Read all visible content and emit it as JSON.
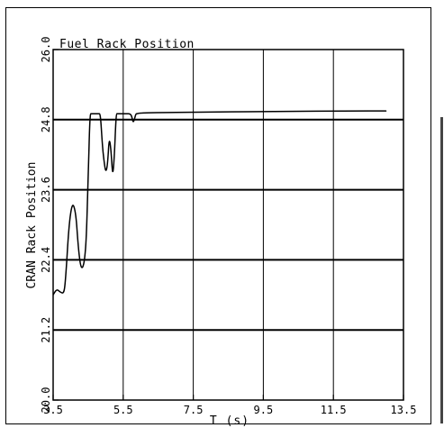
{
  "chart_data": {
    "type": "line",
    "title": "Fuel Rack Position",
    "xlabel": "T (s)",
    "ylabel": "CRAN Rack Position",
    "xlim": [
      3.5,
      13.5
    ],
    "ylim": [
      20.0,
      26.0
    ],
    "x_ticks": [
      "3.5",
      "5.5",
      "7.5",
      "9.5",
      "11.5",
      "13.5"
    ],
    "y_ticks": [
      "20.0",
      "21.2",
      "22.4",
      "23.6",
      "24.8",
      "26.0"
    ],
    "grid": true,
    "series": [
      {
        "x": [
          3.5,
          3.6,
          3.7,
          3.8,
          3.85,
          3.95,
          4.05,
          4.15,
          4.22,
          4.28,
          4.34,
          4.4,
          4.45,
          4.5,
          4.55,
          4.6,
          4.65,
          4.7,
          4.75,
          4.8,
          4.85,
          4.9,
          4.95,
          5.0,
          5.05,
          5.1,
          5.15,
          5.2,
          5.25,
          5.3,
          5.33,
          5.4,
          5.5,
          5.6,
          5.7,
          5.75,
          5.78,
          5.82,
          5.86,
          5.9,
          6.0,
          8.0,
          10.0,
          12.0,
          13.0
        ],
        "y": [
          21.8,
          21.9,
          21.85,
          21.82,
          22.0,
          23.0,
          23.4,
          23.2,
          22.6,
          22.3,
          22.25,
          22.4,
          22.8,
          23.8,
          24.9,
          24.9,
          24.9,
          24.9,
          24.9,
          24.9,
          24.9,
          24.4,
          24.1,
          23.9,
          24.0,
          24.5,
          24.3,
          23.8,
          24.2,
          24.9,
          24.9,
          24.9,
          24.9,
          24.9,
          24.9,
          24.85,
          24.75,
          24.8,
          24.9,
          24.9,
          24.92,
          24.93,
          24.94,
          24.95,
          24.95
        ]
      }
    ]
  }
}
